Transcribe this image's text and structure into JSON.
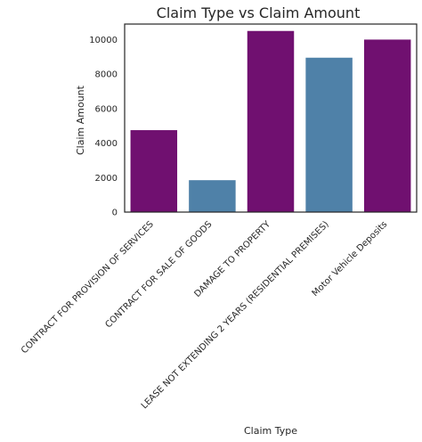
{
  "chart_data": {
    "type": "bar",
    "title": "Claim Type vs Claim Amount",
    "xlabel": "Claim Type",
    "ylabel": "Claim Amount",
    "categories": [
      "CONTRACT FOR PROVISION OF SERVICES",
      "CONTRACT FOR SALE OF GOODS",
      "DAMAGE TO PROPERTY",
      "LEASE NOT EXTENDING 2 YEARS (RESIDENTIAL PREMISES)",
      "Motor Vehicle Deposits"
    ],
    "values": [
      4750,
      1850,
      10500,
      8950,
      10000
    ],
    "colors": [
      "#701070",
      "#4f81a8",
      "#701070",
      "#4f81a8",
      "#701070"
    ],
    "ylim": [
      0,
      10900
    ],
    "yticks": [
      0,
      2000,
      4000,
      6000,
      8000,
      10000
    ],
    "grid": false,
    "legend": "none"
  }
}
